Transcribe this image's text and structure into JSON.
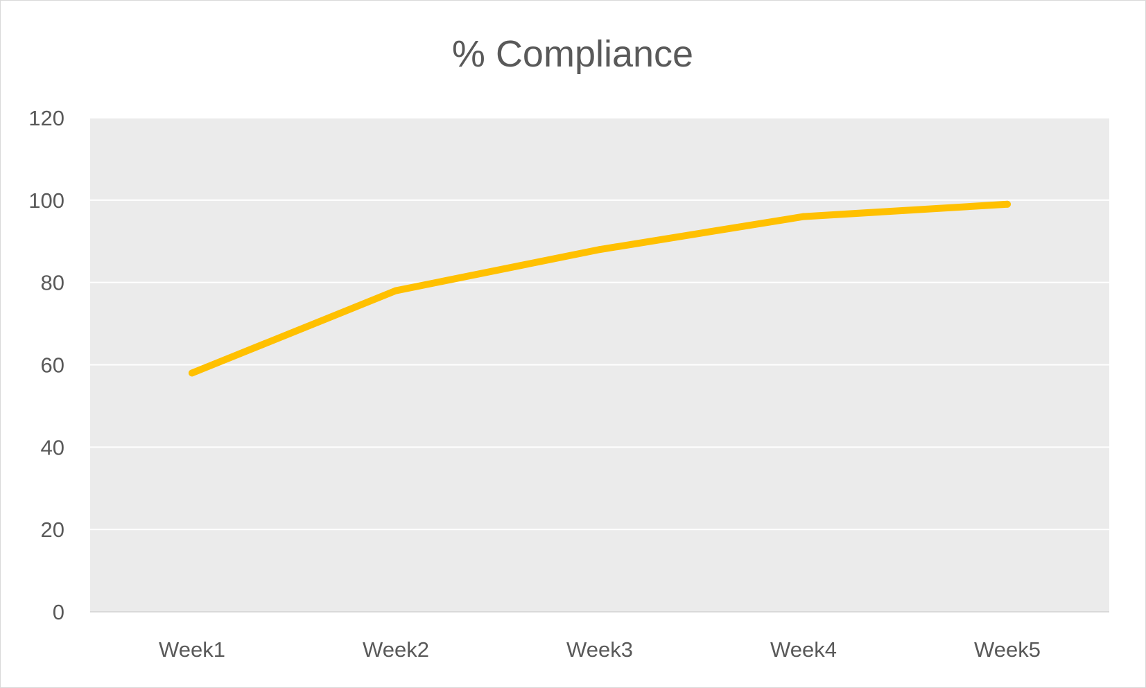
{
  "chart_data": {
    "type": "line",
    "title": "% Compliance",
    "xlabel": "",
    "ylabel": "",
    "categories": [
      "Week1",
      "Week2",
      "Week3",
      "Week4",
      "Week5"
    ],
    "series": [
      {
        "values": [
          58,
          78,
          88,
          96,
          99
        ],
        "color": "#FFC000"
      }
    ],
    "ylim": [
      0,
      120
    ],
    "yticks": [
      0,
      20,
      40,
      60,
      80,
      100,
      120
    ],
    "ytick_labels": [
      "0",
      "20",
      "40",
      "60",
      "80",
      "100",
      "120"
    ],
    "grid": true,
    "legend": "none",
    "plot_background": "#EBEBEB",
    "gridline_color": "#FFFFFF",
    "text_color": "#595959"
  }
}
